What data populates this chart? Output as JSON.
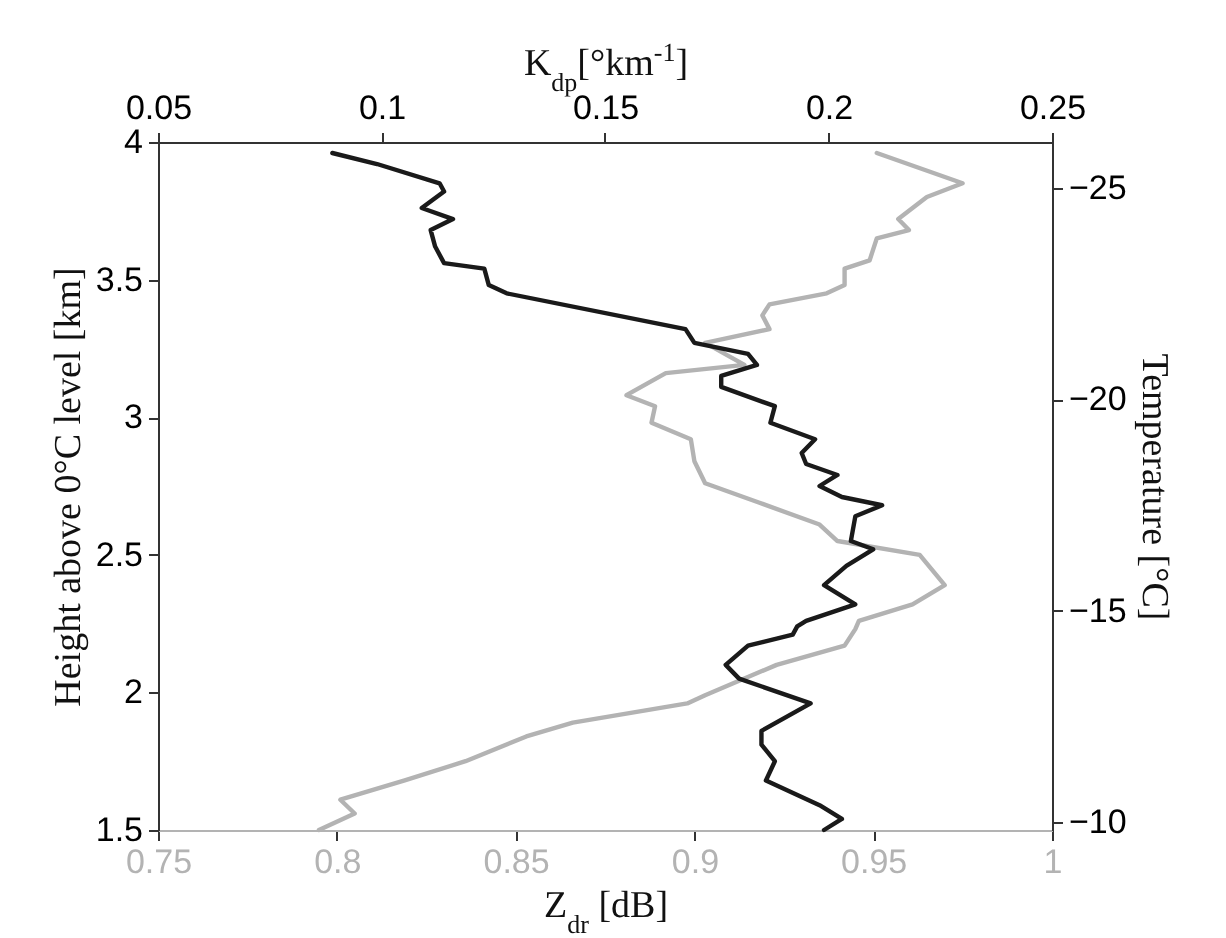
{
  "chart_data": {
    "type": "line",
    "orientation": "horizontal",
    "xlabel": "Z$_{dr}$ [dB]",
    "x2label": "K$_{dp}$[°km$^{-1}$]",
    "ylabel": "Height above 0°C level [km]",
    "y2label": "Temperature [°C]",
    "xlim": [
      0.75,
      1
    ],
    "xticks": [
      0.75,
      0.8,
      0.85,
      0.9,
      0.95,
      1
    ],
    "x2lim": [
      0.05,
      0.25
    ],
    "x2ticks": [
      0.05,
      0.1,
      0.15,
      0.2,
      0.25
    ],
    "ylim": [
      1.5,
      4
    ],
    "yticks": [
      1.5,
      2,
      2.5,
      3,
      3.5,
      4
    ],
    "y2lim": [
      -9.8,
      -26.1
    ],
    "y2ticks": [
      -10,
      -15,
      -20,
      -25
    ],
    "series": [
      {
        "color": "#b3b3b3",
        "x": [
          1.5,
          1.56,
          1.61,
          1.68,
          1.75,
          1.84,
          1.89,
          1.96,
          1.99,
          2.1,
          2.17,
          2.23,
          2.26,
          2.32,
          2.39,
          2.5,
          2.55,
          2.61,
          2.69,
          2.76,
          2.84,
          2.92,
          2.98,
          3.04,
          3.08,
          3.16,
          3.19,
          3.27,
          3.32,
          3.37,
          3.41,
          3.45,
          3.48,
          3.54,
          3.57,
          3.65,
          3.68,
          3.72,
          3.8,
          3.85,
          3.96
        ],
        "values": [
          0.795,
          0.805,
          0.801,
          0.819,
          0.836,
          0.853,
          0.866,
          0.898,
          0.903,
          0.923,
          0.942,
          0.945,
          0.946,
          0.961,
          0.97,
          0.963,
          0.94,
          0.935,
          0.918,
          0.903,
          0.9,
          0.899,
          0.888,
          0.889,
          0.881,
          0.892,
          0.914,
          0.903,
          0.921,
          0.919,
          0.921,
          0.937,
          0.942,
          0.942,
          0.949,
          0.951,
          0.96,
          0.957,
          0.965,
          0.975,
          0.951
        ]
      },
      {
        "color": "#1a1a1a",
        "axis": "x2",
        "x": [
          1.5,
          1.54,
          1.59,
          1.68,
          1.75,
          1.81,
          1.86,
          1.96,
          2.05,
          2.1,
          2.17,
          2.21,
          2.24,
          2.26,
          2.32,
          2.39,
          2.46,
          2.52,
          2.55,
          2.64,
          2.68,
          2.71,
          2.75,
          2.79,
          2.83,
          2.87,
          2.92,
          2.98,
          3.04,
          3.11,
          3.15,
          3.19,
          3.23,
          3.27,
          3.32,
          3.45,
          3.48,
          3.54,
          3.56,
          3.62,
          3.68,
          3.72,
          3.76,
          3.82,
          3.85,
          3.92,
          3.96
        ],
        "values": [
          0.199,
          0.203,
          0.198,
          0.186,
          0.188,
          0.185,
          0.185,
          0.196,
          0.18,
          0.177,
          0.182,
          0.192,
          0.193,
          0.195,
          0.206,
          0.199,
          0.204,
          0.21,
          0.205,
          0.206,
          0.212,
          0.203,
          0.198,
          0.202,
          0.195,
          0.194,
          0.197,
          0.187,
          0.188,
          0.176,
          0.176,
          0.184,
          0.182,
          0.17,
          0.168,
          0.128,
          0.124,
          0.123,
          0.114,
          0.112,
          0.111,
          0.116,
          0.109,
          0.114,
          0.113,
          0.099,
          0.089
        ]
      }
    ]
  }
}
